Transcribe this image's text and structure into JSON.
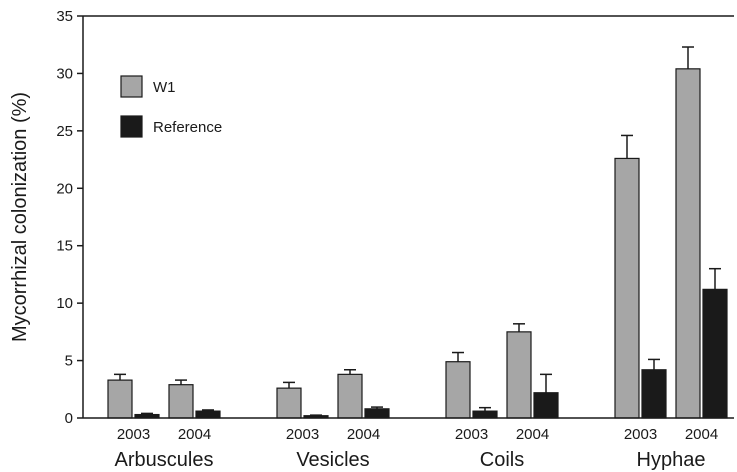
{
  "chart_data": {
    "type": "bar",
    "title": "",
    "xlabel": "",
    "ylabel": "Mycorrhizal colonization (%)",
    "ylim": [
      0,
      35
    ],
    "yticks": [
      0,
      5,
      10,
      15,
      20,
      25,
      30,
      35
    ],
    "grid": false,
    "legend_position": "top-left",
    "groups": [
      {
        "label": "Arbuscules",
        "years": [
          "2003",
          "2004"
        ]
      },
      {
        "label": "Vesicles",
        "years": [
          "2003",
          "2004"
        ]
      },
      {
        "label": "Coils",
        "years": [
          "2003",
          "2004"
        ]
      },
      {
        "label": "Hyphae",
        "years": [
          "2003",
          "2004"
        ]
      }
    ],
    "series": [
      {
        "name": "W1",
        "color": "#a6a6a6",
        "values": [
          [
            3.3,
            2.9
          ],
          [
            2.6,
            3.8
          ],
          [
            4.9,
            7.5
          ],
          [
            22.6,
            30.4
          ]
        ],
        "errors": [
          [
            0.5,
            0.4
          ],
          [
            0.5,
            0.4
          ],
          [
            0.8,
            0.7
          ],
          [
            2.0,
            1.9
          ]
        ]
      },
      {
        "name": "Reference",
        "color": "#1a1a1a",
        "values": [
          [
            0.3,
            0.6
          ],
          [
            0.2,
            0.8
          ],
          [
            0.6,
            2.2
          ],
          [
            4.2,
            11.2
          ]
        ],
        "errors": [
          [
            0.1,
            0.1
          ],
          [
            0.05,
            0.15
          ],
          [
            0.3,
            1.6
          ],
          [
            0.9,
            1.8
          ]
        ]
      }
    ]
  }
}
